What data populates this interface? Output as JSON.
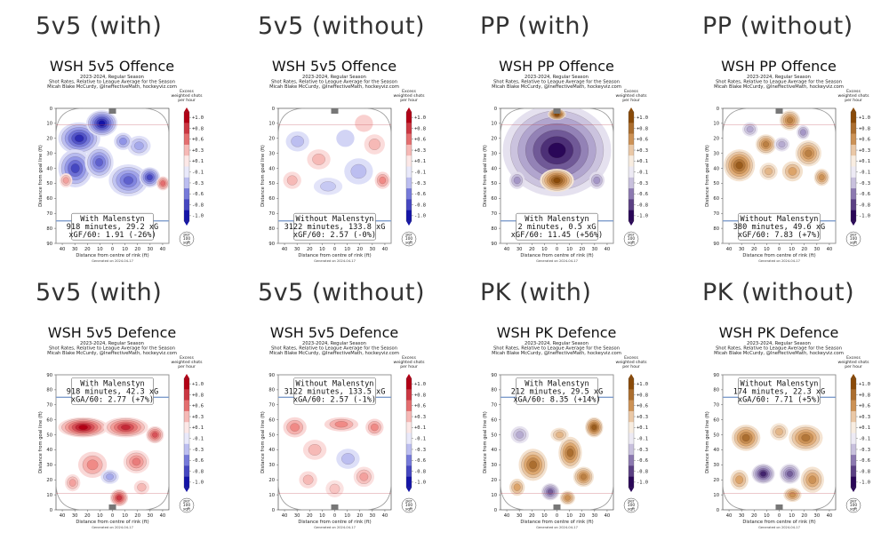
{
  "chart_data": [
    {
      "type": "heatmap",
      "header": "5v5 (with)",
      "title": "WSH 5v5 Offence",
      "subtitle": [
        "2023-2024, Regular Season",
        "Shot Rates, Relative to League Average for the Season",
        "Micah Blake McCurdy, @IneffectiveMath, hockeyviz.com"
      ],
      "annotation": [
        "With Malenstyn",
        "918 minutes, 29.2 xG",
        "xGF/60: 1.91 (-26%)"
      ],
      "orientation": "offence",
      "scheme": "red-blue",
      "blobs": [
        [
          -25,
          20,
          15,
          10,
          -0.9
        ],
        [
          -8,
          10,
          11,
          8,
          -1.0
        ],
        [
          -28,
          40,
          12,
          12,
          -0.8
        ],
        [
          -10,
          36,
          10,
          10,
          -0.7
        ],
        [
          12,
          48,
          14,
          10,
          -0.7
        ],
        [
          28,
          46,
          7,
          6,
          -0.8
        ],
        [
          20,
          25,
          8,
          6,
          -0.4
        ],
        [
          38,
          50,
          4,
          4,
          0.6
        ],
        [
          -35,
          48,
          4,
          4,
          0.4
        ],
        [
          8,
          22,
          6,
          5,
          -0.5
        ]
      ]
    },
    {
      "type": "heatmap",
      "header": "5v5 (without)",
      "title": "WSH 5v5 Offence",
      "subtitle": [
        "2023-2024, Regular Season",
        "Shot Rates, Relative to League Average for the Season",
        "Micah Blake McCurdy, @IneffectiveMath, hockeyviz.com"
      ],
      "annotation": [
        "Without Malenstyn",
        "3122 minutes, 133.8 xG",
        "xGF/60: 2.57 (-0%)"
      ],
      "orientation": "offence",
      "scheme": "red-blue",
      "blobs": [
        [
          -28,
          22,
          8,
          6,
          -0.3
        ],
        [
          -12,
          34,
          8,
          6,
          0.3
        ],
        [
          8,
          20,
          6,
          5,
          -0.2
        ],
        [
          18,
          42,
          10,
          8,
          -0.3
        ],
        [
          30,
          24,
          7,
          6,
          0.3
        ],
        [
          36,
          48,
          5,
          5,
          0.5
        ],
        [
          -32,
          48,
          6,
          5,
          0.3
        ],
        [
          -5,
          52,
          10,
          5,
          -0.25
        ],
        [
          22,
          10,
          6,
          5,
          0.2
        ]
      ]
    },
    {
      "type": "heatmap",
      "header": "PP (with)",
      "title": "WSH PP Offence",
      "subtitle": [
        "2023-2024, Regular Season",
        "Shot Rates, Relative to League Average for the Season",
        "Micah Blake McCurdy, @IneffectiveMath, hockeyviz.com"
      ],
      "annotation": [
        "With Malenstyn",
        "2 minutes, 0.5 xG",
        "xGF/60: 11.45 (+56%)"
      ],
      "orientation": "offence",
      "scheme": "orange-purple",
      "blobs": [
        [
          0,
          28,
          40,
          30,
          -1.0
        ],
        [
          0,
          48,
          12,
          7,
          1.0
        ],
        [
          0,
          4,
          6,
          3,
          1.0
        ],
        [
          -30,
          48,
          5,
          5,
          -0.5
        ],
        [
          30,
          48,
          5,
          5,
          -0.5
        ]
      ]
    },
    {
      "type": "heatmap",
      "header": "PP (without)",
      "title": "WSH PP Offence",
      "subtitle": [
        "2023-2024, Regular Season",
        "Shot Rates, Relative to League Average for the Season",
        "Micah Blake McCurdy, @IneffectiveMath, hockeyviz.com"
      ],
      "annotation": [
        "Without Malenstyn",
        "380 minutes, 49.6 xG",
        "xGF/60: 7.83 (+7%)"
      ],
      "orientation": "offence",
      "scheme": "orange-purple",
      "blobs": [
        [
          -30,
          38,
          11,
          10,
          0.9
        ],
        [
          -10,
          24,
          7,
          6,
          0.7
        ],
        [
          8,
          8,
          7,
          6,
          0.7
        ],
        [
          22,
          30,
          9,
          8,
          0.7
        ],
        [
          32,
          46,
          5,
          5,
          0.6
        ],
        [
          10,
          42,
          7,
          6,
          0.5
        ],
        [
          -8,
          42,
          6,
          5,
          0.4
        ],
        [
          2,
          24,
          5,
          4,
          -0.4
        ],
        [
          -22,
          14,
          5,
          4,
          -0.4
        ],
        [
          18,
          16,
          4,
          4,
          -0.5
        ]
      ]
    },
    {
      "type": "heatmap",
      "header": "5v5 (with)",
      "title": "WSH 5v5 Defence",
      "subtitle": [
        "2023-2024, Regular Season",
        "Shot Rates, Relative to League Average for the Season",
        "Micah Blake McCurdy, @IneffectiveMath, hockeyviz.com"
      ],
      "annotation": [
        "With Malenstyn",
        "918 minutes, 42.3 xG",
        "xGA/60: 2.77 (+7%)"
      ],
      "orientation": "defence",
      "scheme": "red-blue",
      "blobs": [
        [
          -22,
          55,
          18,
          6,
          1.0
        ],
        [
          10,
          55,
          16,
          6,
          0.85
        ],
        [
          32,
          50,
          6,
          5,
          0.7
        ],
        [
          -15,
          30,
          10,
          8,
          0.5
        ],
        [
          18,
          32,
          9,
          7,
          0.55
        ],
        [
          5,
          8,
          6,
          5,
          0.8
        ],
        [
          -30,
          18,
          5,
          5,
          0.4
        ],
        [
          -2,
          22,
          6,
          4,
          -0.4
        ],
        [
          22,
          15,
          5,
          4,
          0.3
        ]
      ]
    },
    {
      "type": "heatmap",
      "header": "5v5 (without)",
      "title": "WSH 5v5 Defence",
      "subtitle": [
        "2023-2024, Regular Season",
        "Shot Rates, Relative to League Average for the Season",
        "Micah Blake McCurdy, @IneffectiveMath, hockeyviz.com"
      ],
      "annotation": [
        "Without Malenstyn",
        "3122 minutes, 133.5 xG",
        "xGA/60: 2.57 (-1%)"
      ],
      "orientation": "defence",
      "scheme": "red-blue",
      "blobs": [
        [
          -30,
          55,
          8,
          6,
          0.5
        ],
        [
          5,
          57,
          12,
          4,
          0.5
        ],
        [
          30,
          55,
          6,
          5,
          0.5
        ],
        [
          -15,
          40,
          8,
          6,
          0.3
        ],
        [
          10,
          34,
          8,
          6,
          -0.3
        ],
        [
          22,
          22,
          7,
          6,
          0.4
        ],
        [
          -20,
          20,
          6,
          5,
          0.3
        ],
        [
          0,
          14,
          6,
          5,
          0.25
        ]
      ]
    },
    {
      "type": "heatmap",
      "header": "PK (with)",
      "title": "WSH PK Defence",
      "subtitle": [
        "2023-2024, Regular Season",
        "Shot Rates, Relative to League Average for the Season",
        "Micah Blake McCurdy, @IneffectiveMath, hockeyviz.com"
      ],
      "annotation": [
        "With Malenstyn",
        "212 minutes, 29.5 xG",
        "xGA/60: 8.35 (+14%)"
      ],
      "orientation": "defence",
      "scheme": "orange-purple",
      "blobs": [
        [
          -18,
          30,
          10,
          10,
          0.8
        ],
        [
          10,
          38,
          8,
          10,
          0.8
        ],
        [
          28,
          55,
          6,
          6,
          0.9
        ],
        [
          20,
          22,
          7,
          6,
          0.7
        ],
        [
          -28,
          50,
          6,
          5,
          -0.4
        ],
        [
          -5,
          12,
          6,
          5,
          -0.7
        ],
        [
          8,
          8,
          5,
          4,
          0.6
        ],
        [
          -30,
          15,
          5,
          5,
          0.5
        ],
        [
          2,
          50,
          6,
          4,
          0.4
        ]
      ]
    },
    {
      "type": "heatmap",
      "header": "PK (without)",
      "title": "WSH PK Defence",
      "subtitle": [
        "2023-2024, Regular Season",
        "Shot Rates, Relative to League Average for the Season",
        "Micah Blake McCurdy, @IneffectiveMath, hockeyviz.com"
      ],
      "annotation": [
        "Without Malenstyn",
        "174 minutes, 22.3 xG",
        "xGA/60: 7.71 (+5%)"
      ],
      "orientation": "defence",
      "scheme": "orange-purple",
      "blobs": [
        [
          -25,
          48,
          10,
          8,
          0.8
        ],
        [
          20,
          48,
          12,
          8,
          0.75
        ],
        [
          -12,
          24,
          8,
          6,
          -0.9
        ],
        [
          8,
          24,
          7,
          6,
          -0.7
        ],
        [
          25,
          20,
          8,
          8,
          0.6
        ],
        [
          -30,
          20,
          6,
          6,
          0.5
        ],
        [
          10,
          10,
          6,
          4,
          0.6
        ],
        [
          0,
          52,
          6,
          5,
          0.4
        ]
      ]
    }
  ],
  "axes": {
    "xlabel": "Distance from centre of rink (ft)",
    "ylabel": "Distance from goal line (ft)",
    "xticks": [
      40,
      30,
      20,
      10,
      0,
      10,
      20,
      30,
      40
    ],
    "yticks": [
      0,
      10,
      20,
      30,
      40,
      50,
      60,
      70,
      80,
      90
    ],
    "xlim": [
      -42.5,
      42.5
    ],
    "ylim": [
      0,
      90
    ]
  },
  "colorbar": {
    "title": [
      "Excess",
      "weighted shots",
      "per hour"
    ],
    "ticks": [
      "+1.0",
      "+0.8",
      "+0.6",
      "+0.3",
      "+0.1",
      "-0.1",
      "-0.3",
      "-0.6",
      "-0.8",
      "-1.0"
    ],
    "levels": [
      1.0,
      0.8,
      0.6,
      0.3,
      0.1,
      -0.1,
      -0.3,
      -0.6,
      -0.8,
      -1.0
    ],
    "units_badge": [
      "per",
      "100",
      "sqft"
    ]
  },
  "generated": "Generated on 2024-04-17",
  "colors": {
    "red_high": "#b30015",
    "red_mid": "#f08a86",
    "blue_low": "#1414a8",
    "blue_mid": "#8f93e6",
    "orange_high": "#8a4a08",
    "orange_mid": "#dca46a",
    "purple_low": "#2a0758",
    "purple_mid": "#a496c6",
    "neutral": "#ffffff",
    "rink_line": "#c24c55",
    "blue_line": "#7e9ccc"
  }
}
